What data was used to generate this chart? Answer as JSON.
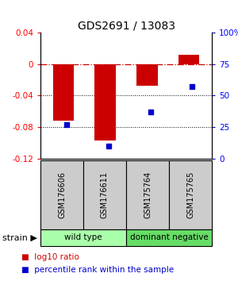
{
  "title": "GDS2691 / 13083",
  "samples": [
    "GSM176606",
    "GSM176611",
    "GSM175764",
    "GSM175765"
  ],
  "log10_ratio": [
    -0.072,
    -0.097,
    -0.028,
    0.012
  ],
  "percentile_rank": [
    27,
    10,
    37,
    57
  ],
  "groups": [
    {
      "label": "wild type",
      "samples": [
        0,
        1
      ],
      "color": "#aaffaa"
    },
    {
      "label": "dominant negative",
      "samples": [
        2,
        3
      ],
      "color": "#66dd66"
    }
  ],
  "ylim_left": [
    -0.12,
    0.04
  ],
  "ylim_right": [
    0,
    100
  ],
  "yticks_left": [
    0.04,
    0,
    -0.04,
    -0.08,
    -0.12
  ],
  "yticks_right": [
    100,
    75,
    50,
    25,
    0
  ],
  "bar_color": "#cc0000",
  "dot_color": "#0000cc",
  "hline_color": "#cc0000",
  "bar_width": 0.5,
  "legend_labels": [
    "log10 ratio",
    "percentile rank within the sample"
  ],
  "strain_label": "strain",
  "group_header_bg": "#cccccc",
  "title_fontsize": 10,
  "tick_fontsize": 7.5,
  "sample_fontsize": 7,
  "group_fontsize": 7.5,
  "legend_fontsize": 7.5
}
